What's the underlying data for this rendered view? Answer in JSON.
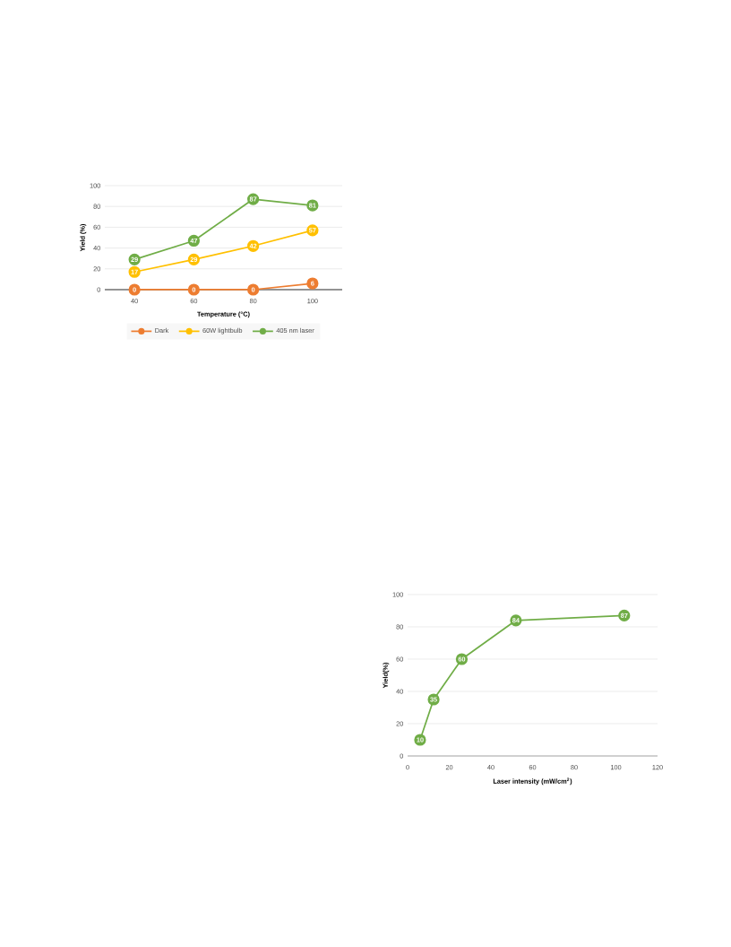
{
  "chart_data": [
    {
      "type": "line",
      "xlabel": "Temperature (°C)",
      "ylabel": "Yield (%)",
      "categories": [
        "40",
        "60",
        "80",
        "100"
      ],
      "ylim": [
        0,
        100
      ],
      "yticks": [
        0,
        20,
        40,
        60,
        80,
        100
      ],
      "grid": "y",
      "legend": "bottom",
      "marker": "circle",
      "data_labels": true,
      "series": [
        {
          "name": "Dark",
          "color": "#ed7d31",
          "values": [
            0,
            0,
            0,
            6
          ]
        },
        {
          "name": "60W lightbulb",
          "color": "#ffc000",
          "values": [
            17,
            29,
            42,
            57
          ]
        },
        {
          "name": "405 nm laser",
          "color": "#70ad47",
          "values": [
            29,
            47,
            87,
            81
          ]
        }
      ]
    },
    {
      "type": "line",
      "xlabel": "Laser intensity (mW/cm$^{2}$)",
      "ylabel": "Yield(%)",
      "xlim": [
        0,
        120
      ],
      "xticks": [
        0,
        20,
        40,
        60,
        80,
        100,
        120
      ],
      "ylim": [
        0,
        100
      ],
      "yticks": [
        0,
        20,
        40,
        60,
        80,
        100
      ],
      "grid": "y",
      "marker": "circle",
      "data_labels": true,
      "series": [
        {
          "color": "#70ad47",
          "x": [
            6,
            12.5,
            26,
            52,
            104
          ],
          "values": [
            10,
            35,
            60,
            84,
            87
          ]
        }
      ]
    }
  ]
}
